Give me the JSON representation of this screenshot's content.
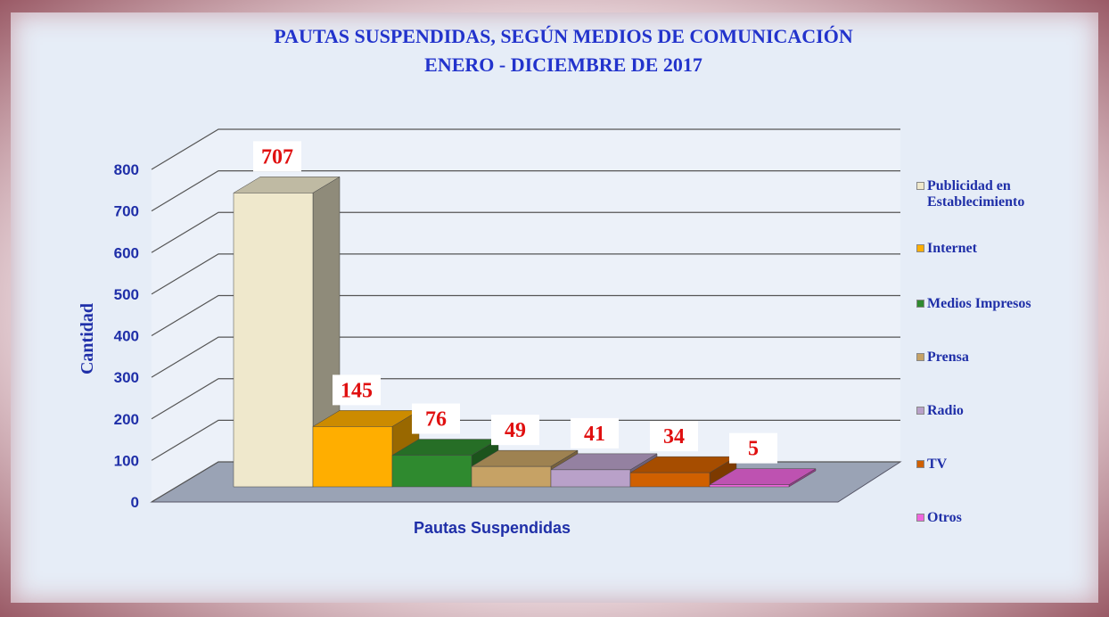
{
  "chart_data": {
    "type": "bar",
    "title": "PAUTAS SUSPENDIDAS, SEGÚN MEDIOS DE COMUNICACIÓN",
    "subtitle": "ENERO - DICIEMBRE DE 2017",
    "y_label": "Cantidad",
    "categories": [
      "Pautas Suspendidas"
    ],
    "series": [
      {
        "name": "Publicidad en Establecimiento",
        "color": "#efe8cc",
        "values": [
          707
        ]
      },
      {
        "name": "Internet",
        "color": "#ffae00",
        "values": [
          145
        ]
      },
      {
        "name": "Medios Impresos",
        "color": "#2f8a2f",
        "values": [
          76
        ]
      },
      {
        "name": "Prensa",
        "color": "#c6a265",
        "values": [
          49
        ]
      },
      {
        "name": "Radio",
        "color": "#b9a1c9",
        "values": [
          41
        ]
      },
      {
        "name": "TV",
        "color": "#d06000",
        "values": [
          34
        ]
      },
      {
        "name": "Otros",
        "color": "#ee66dd",
        "values": [
          5
        ]
      }
    ],
    "ylim": [
      0,
      800
    ],
    "yticks": [
      0,
      100,
      200,
      300,
      400,
      500,
      600,
      700,
      800
    ],
    "grid": true,
    "legend": "right"
  }
}
